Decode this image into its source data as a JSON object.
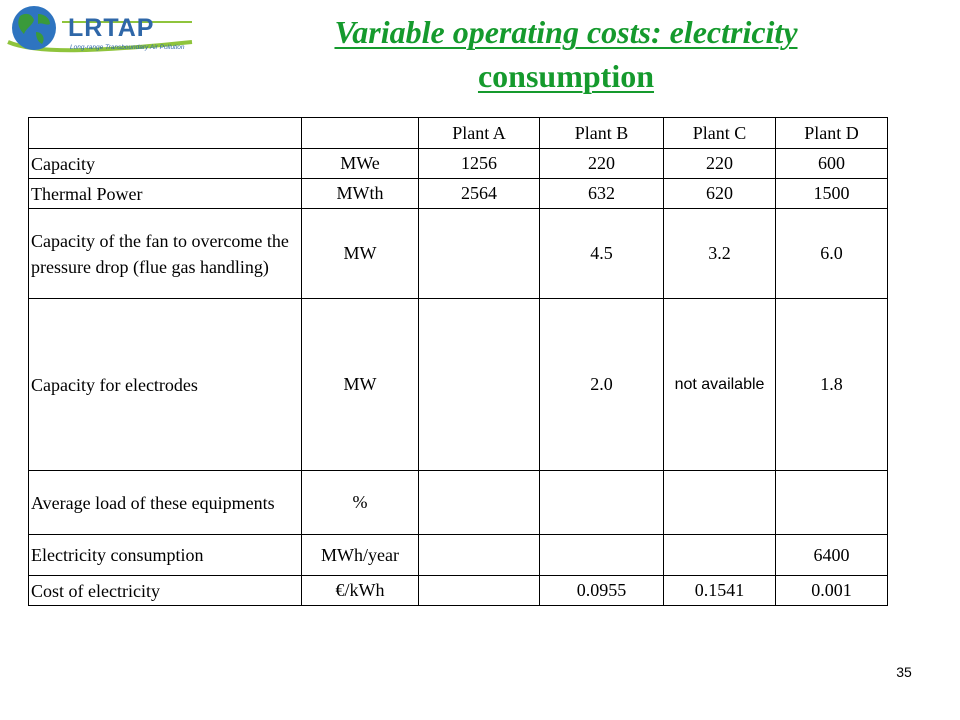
{
  "logo": {
    "name": "LRTAP",
    "subtitle": "Long-range Transboundary Air Pollution",
    "colors": {
      "text": "#2f67a8",
      "globe": "#2e74c0",
      "land": "#3a9a3a",
      "swoosh": "#8fc43c"
    }
  },
  "title": {
    "line1": "Variable operating costs: electricity",
    "line2": "consumption",
    "color": "#159a2d"
  },
  "table": {
    "headers": [
      "",
      "",
      "Plant A",
      "Plant B",
      "Plant C",
      "Plant D"
    ],
    "rows": [
      [
        "Capacity",
        "MWe",
        "1256",
        "220",
        "220",
        "600"
      ],
      [
        "Thermal Power",
        "MWth",
        "2564",
        "632",
        "620",
        "1500"
      ],
      [
        "Capacity of the fan to overcome the pressure drop (flue gas handling)",
        "MW",
        "",
        "4.5",
        "3.2",
        "6.0"
      ],
      [
        "Capacity for electrodes",
        "MW",
        "",
        "2.0",
        "not available",
        "1.8"
      ],
      [
        "Average load of these equipments",
        "%",
        "",
        "",
        "",
        ""
      ],
      [
        "Electricity consumption",
        "MWh/year",
        "",
        "",
        "",
        "6400"
      ],
      [
        "Cost of electricity",
        "€/kWh",
        "",
        "0.0955",
        "0.1541",
        "0.001"
      ]
    ]
  },
  "page_number": "35"
}
